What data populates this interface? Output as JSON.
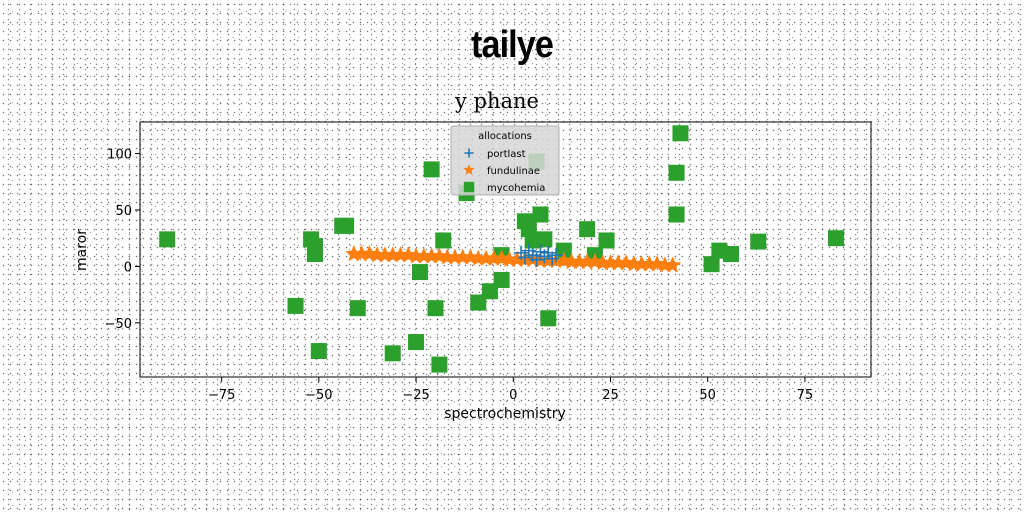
{
  "suptitle": "tailye",
  "chart_data": {
    "type": "scatter",
    "title": "y phane",
    "xlabel": "spectrochemistry",
    "ylabel": "maror",
    "xlim": [
      -96,
      92
    ],
    "ylim": [
      -98,
      128
    ],
    "xticks": [
      -75,
      -50,
      -25,
      0,
      25,
      50,
      75
    ],
    "yticks": [
      -50,
      0,
      50,
      100
    ],
    "xtick_labels": [
      "−75",
      "−50",
      "−25",
      "0",
      "25",
      "50",
      "75"
    ],
    "ytick_labels": [
      "−50",
      "0",
      "50",
      "100"
    ],
    "grid": false,
    "legend": {
      "title": "allocations",
      "placement": "top-center"
    },
    "series": [
      {
        "name": "portlast",
        "marker": "plus",
        "color": "#1f77b4",
        "points": [
          [
            2,
            12
          ],
          [
            3,
            8
          ],
          [
            4,
            14
          ],
          [
            5,
            10
          ],
          [
            6,
            6
          ],
          [
            7,
            13
          ],
          [
            8,
            9
          ],
          [
            9,
            12
          ],
          [
            10,
            7
          ],
          [
            11,
            10
          ]
        ]
      },
      {
        "name": "fundulinae",
        "marker": "star",
        "color": "#ff7f0e",
        "points": [
          [
            -41,
            11
          ],
          [
            -39,
            11
          ],
          [
            -37,
            11
          ],
          [
            -35,
            10
          ],
          [
            -33,
            10
          ],
          [
            -31,
            10
          ],
          [
            -29,
            10
          ],
          [
            -27,
            10
          ],
          [
            -25,
            9
          ],
          [
            -23,
            9
          ],
          [
            -21,
            9
          ],
          [
            -19,
            9
          ],
          [
            -17,
            8
          ],
          [
            -15,
            8
          ],
          [
            -13,
            8
          ],
          [
            -11,
            8
          ],
          [
            -9,
            7
          ],
          [
            -7,
            7
          ],
          [
            -5,
            7
          ],
          [
            -3,
            7
          ],
          [
            -1,
            6
          ],
          [
            1,
            6
          ],
          [
            3,
            6
          ],
          [
            5,
            6
          ],
          [
            7,
            5
          ],
          [
            9,
            5
          ],
          [
            11,
            5
          ],
          [
            13,
            5
          ],
          [
            15,
            4
          ],
          [
            17,
            4
          ],
          [
            19,
            4
          ],
          [
            21,
            4
          ],
          [
            23,
            3
          ],
          [
            25,
            3
          ],
          [
            27,
            3
          ],
          [
            29,
            3
          ],
          [
            31,
            2
          ],
          [
            33,
            2
          ],
          [
            35,
            2
          ],
          [
            37,
            2
          ],
          [
            39,
            1
          ],
          [
            41,
            1
          ]
        ]
      },
      {
        "name": "mycohemia",
        "marker": "square",
        "color": "#2ca02c",
        "points": [
          [
            -89,
            24
          ],
          [
            -56,
            -35
          ],
          [
            -52,
            24
          ],
          [
            -51,
            18
          ],
          [
            -51,
            11
          ],
          [
            -50,
            -75
          ],
          [
            -44,
            36
          ],
          [
            -43,
            36
          ],
          [
            -40,
            -37
          ],
          [
            -31,
            -77
          ],
          [
            -25,
            -67
          ],
          [
            -24,
            -5
          ],
          [
            -21,
            86
          ],
          [
            -20,
            -37
          ],
          [
            -19,
            -87
          ],
          [
            -18,
            23
          ],
          [
            -12,
            65
          ],
          [
            -9,
            -32
          ],
          [
            -6,
            -22
          ],
          [
            -3,
            -12
          ],
          [
            -3,
            10
          ],
          [
            3,
            40
          ],
          [
            4,
            33
          ],
          [
            5,
            23
          ],
          [
            6,
            93
          ],
          [
            7,
            46
          ],
          [
            8,
            24
          ],
          [
            9,
            -46
          ],
          [
            13,
            14
          ],
          [
            19,
            33
          ],
          [
            21,
            10
          ],
          [
            24,
            23
          ],
          [
            42,
            46
          ],
          [
            42,
            83
          ],
          [
            43,
            118
          ],
          [
            51,
            2
          ],
          [
            53,
            14
          ],
          [
            56,
            11
          ],
          [
            63,
            22
          ],
          [
            83,
            25
          ]
        ]
      }
    ]
  }
}
